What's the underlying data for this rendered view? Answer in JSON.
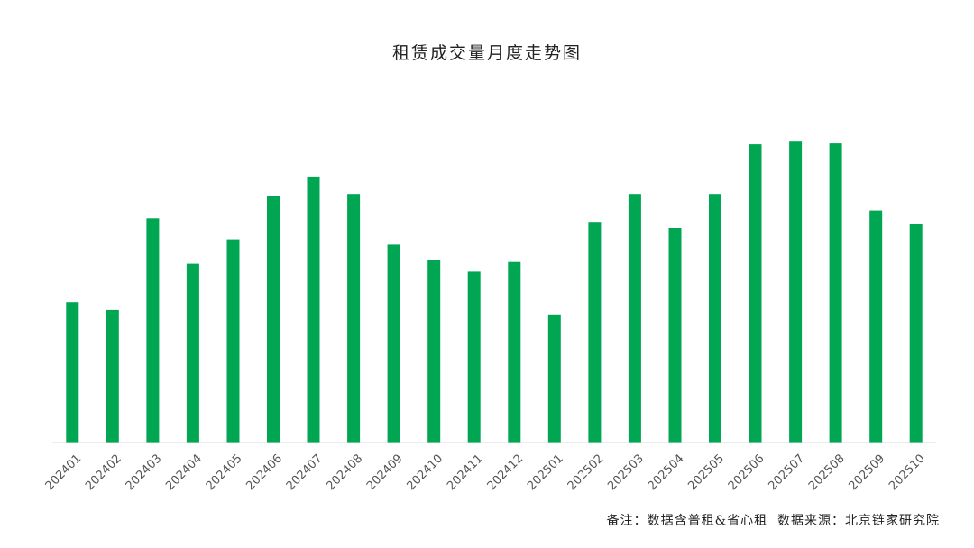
{
  "chart_data": {
    "type": "bar",
    "title": "租赁成交量月度走势图",
    "categories": [
      "202401",
      "202402",
      "202403",
      "202404",
      "202405",
      "202406",
      "202407",
      "202408",
      "202409",
      "202410",
      "202411",
      "202412",
      "202501",
      "202502",
      "202503",
      "202504",
      "202505",
      "202506",
      "202507",
      "202508",
      "202509",
      "202510"
    ],
    "series": [
      {
        "values": [
          161,
          152,
          257,
          205,
          233,
          283,
          305,
          285,
          227,
          209,
          196,
          207,
          147,
          253,
          285,
          246,
          285,
          342,
          346,
          343,
          266,
          251
        ]
      }
    ],
    "ylim": [
      0,
      370
    ],
    "xlabel": "",
    "ylabel": "",
    "grid": false,
    "legend": "none",
    "bar_color": "#00a651",
    "axis_color": "#d9d9d9"
  },
  "footnote": "备注：数据含普租&省心租  数据来源：北京链家研究院"
}
